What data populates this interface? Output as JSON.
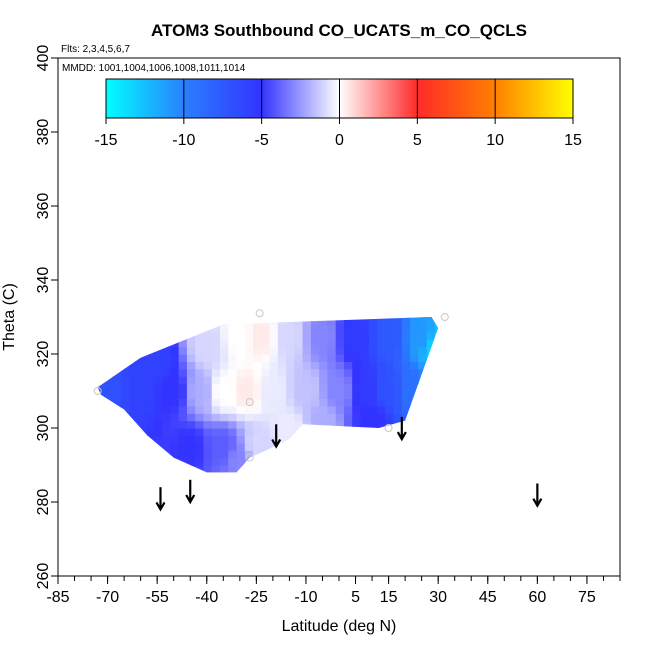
{
  "chart_data": {
    "type": "heatmap",
    "title": "ATOM3 Southbound CO_UCATS_m_CO_QCLS",
    "flights_label": "Flts: 2,3,4,5,6,7",
    "dates_label": "MMDD: 1001,1004,1006,1008,1011,1014",
    "xlabel": "Latitude (deg N)",
    "ylabel": "Theta (C)",
    "xlim": [
      -85,
      85
    ],
    "ylim": [
      260,
      400
    ],
    "x_ticks": [
      -85,
      -70,
      -55,
      -40,
      -25,
      -10,
      5,
      15,
      30,
      45,
      60,
      75
    ],
    "x_tick_labels": [
      "-85",
      "-70",
      "-55",
      "-40",
      "-25",
      "-10",
      "5",
      "15",
      "30",
      "45",
      "60",
      "75"
    ],
    "x_minor_step": 5,
    "y_ticks": [
      260,
      280,
      300,
      320,
      340,
      360,
      380,
      400
    ],
    "y_tick_labels": [
      "260",
      "280",
      "300",
      "320",
      "340",
      "360",
      "380",
      "400"
    ],
    "colorbar": {
      "range": [
        -15,
        15
      ],
      "ticks": [
        -15,
        -10,
        -5,
        0,
        5,
        10,
        15
      ],
      "tick_labels": [
        "-15",
        "-10",
        "-5",
        "0",
        "5",
        "10",
        "15"
      ],
      "stops": [
        {
          "value": -15,
          "color": "#00ffff"
        },
        {
          "value": -10,
          "color": "#2a7fff"
        },
        {
          "value": -5,
          "color": "#3333ff"
        },
        {
          "value": 0,
          "color": "#ffffff"
        },
        {
          "value": 5,
          "color": "#ff2a2a"
        },
        {
          "value": 10,
          "color": "#ff8000"
        },
        {
          "value": 15,
          "color": "#ffff00"
        }
      ]
    },
    "field_boundary": [
      [
        -73,
        311
      ],
      [
        -60,
        319
      ],
      [
        -35,
        328
      ],
      [
        28,
        330
      ],
      [
        30,
        327
      ],
      [
        20,
        302
      ],
      [
        12,
        300
      ],
      [
        -11,
        301
      ],
      [
        -15,
        297
      ],
      [
        -22,
        294
      ],
      [
        -27,
        292
      ],
      [
        -31,
        288
      ],
      [
        -40,
        288
      ],
      [
        -50,
        292
      ],
      [
        -58,
        298
      ],
      [
        -65,
        305
      ],
      [
        -72,
        309
      ]
    ],
    "field_samples": [
      {
        "lat": -70,
        "theta": 310,
        "value": -7
      },
      {
        "lat": -60,
        "theta": 310,
        "value": -6
      },
      {
        "lat": -50,
        "theta": 310,
        "value": -5
      },
      {
        "lat": -42,
        "theta": 310,
        "value": -2
      },
      {
        "lat": -35,
        "theta": 310,
        "value": 0
      },
      {
        "lat": -28,
        "theta": 310,
        "value": 0.5
      },
      {
        "lat": -20,
        "theta": 310,
        "value": -0.5
      },
      {
        "lat": -10,
        "theta": 310,
        "value": -1.5
      },
      {
        "lat": 0,
        "theta": 310,
        "value": -3
      },
      {
        "lat": 8,
        "theta": 310,
        "value": -5.5
      },
      {
        "lat": 15,
        "theta": 310,
        "value": -7
      },
      {
        "lat": 22,
        "theta": 310,
        "value": -9
      },
      {
        "lat": -45,
        "theta": 295,
        "value": -5
      },
      {
        "lat": -35,
        "theta": 295,
        "value": -4
      },
      {
        "lat": -25,
        "theta": 295,
        "value": -1
      },
      {
        "lat": -15,
        "theta": 300,
        "value": -0.5
      },
      {
        "lat": -5,
        "theta": 302,
        "value": -2
      },
      {
        "lat": 10,
        "theta": 302,
        "value": -5
      },
      {
        "lat": -40,
        "theta": 322,
        "value": -1
      },
      {
        "lat": -30,
        "theta": 325,
        "value": 0
      },
      {
        "lat": -24,
        "theta": 325,
        "value": 0.5
      },
      {
        "lat": -15,
        "theta": 325,
        "value": -1
      },
      {
        "lat": -5,
        "theta": 325,
        "value": -3
      },
      {
        "lat": 5,
        "theta": 325,
        "value": -5.5
      },
      {
        "lat": 15,
        "theta": 325,
        "value": -7.5
      },
      {
        "lat": 25,
        "theta": 325,
        "value": -11
      },
      {
        "lat": 29,
        "theta": 322,
        "value": -13
      },
      {
        "lat": -55,
        "theta": 318,
        "value": -6
      },
      {
        "lat": -30,
        "theta": 292,
        "value": -3
      }
    ],
    "sample_points": [
      {
        "lat": -73,
        "theta": 310
      },
      {
        "lat": -24,
        "theta": 331
      },
      {
        "lat": -27,
        "theta": 307
      },
      {
        "lat": -27,
        "theta": 292
      },
      {
        "lat": 32,
        "theta": 330
      },
      {
        "lat": 15,
        "theta": 300
      }
    ],
    "profile_arrows": [
      {
        "lat": -54,
        "theta_top": 284,
        "theta_bottom": 278
      },
      {
        "lat": -45,
        "theta_top": 286,
        "theta_bottom": 280
      },
      {
        "lat": -19,
        "theta_top": 301,
        "theta_bottom": 295
      },
      {
        "lat": 19,
        "theta_top": 303,
        "theta_bottom": 297
      },
      {
        "lat": 60,
        "theta_top": 285,
        "theta_bottom": 279
      }
    ]
  }
}
